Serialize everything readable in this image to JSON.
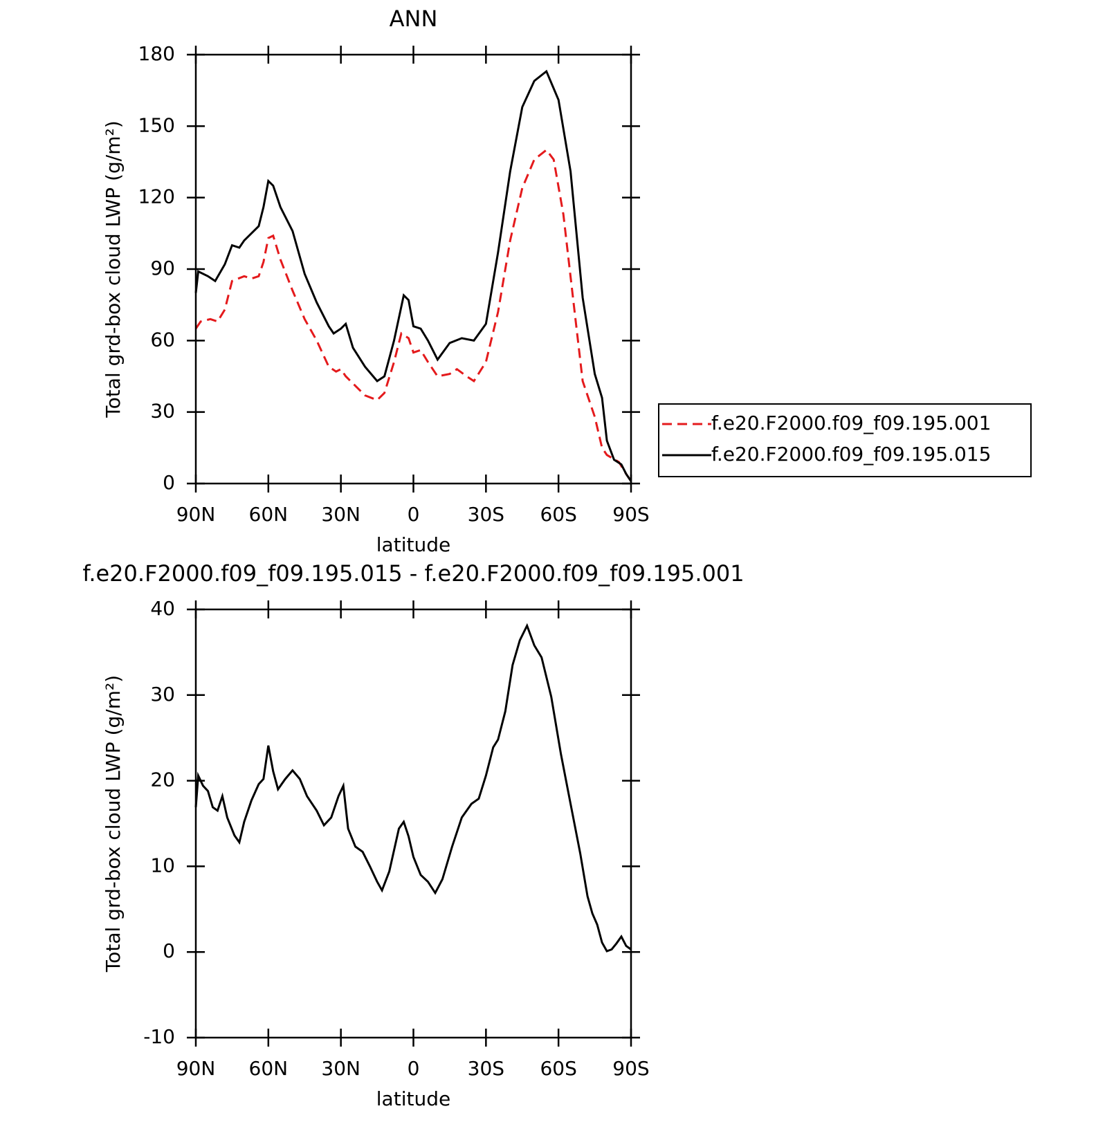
{
  "chart_data": [
    {
      "type": "line",
      "title": "ANN",
      "x_label": "latitude",
      "y_label": "Total grd-box cloud LWP (g/m²)",
      "xlim": [
        90,
        -90
      ],
      "xticks": [
        {
          "value": 90,
          "label": "90N"
        },
        {
          "value": 60,
          "label": "60N"
        },
        {
          "value": 30,
          "label": "30N"
        },
        0,
        {
          "value": -30,
          "label": "30S"
        },
        {
          "value": -60,
          "label": "60S"
        },
        {
          "value": -90,
          "label": "90S"
        }
      ],
      "ylim": [
        0,
        180
      ],
      "yticks": [
        0,
        30,
        60,
        90,
        120,
        150,
        180
      ],
      "legend": "right",
      "series": [
        {
          "name": "f.e20.F2000.f09_f09.195.001",
          "color": "#e41a1c",
          "line_style": "dashed",
          "x": [
            90,
            88,
            84,
            81,
            78,
            75,
            70,
            67,
            64,
            62,
            60,
            58,
            55,
            50,
            45,
            40,
            35,
            32,
            30,
            28,
            25,
            20,
            15,
            12,
            8,
            5,
            2,
            0,
            -3,
            -6,
            -10,
            -15,
            -18,
            -22,
            -25,
            -30,
            -35,
            -40,
            -45,
            -50,
            -55,
            -58,
            -62,
            -66,
            -70,
            -75,
            -78,
            -80,
            -85,
            -88,
            -90
          ],
          "values": [
            65,
            68,
            69,
            68,
            73,
            85,
            87,
            86,
            87,
            93,
            103,
            104,
            94,
            81,
            69,
            60,
            49,
            47,
            48,
            45,
            42,
            37,
            35,
            38,
            51,
            63,
            61,
            55,
            56,
            51,
            45,
            46,
            48,
            45,
            43,
            51,
            72,
            102,
            124,
            136,
            140,
            136,
            113,
            78,
            43,
            28,
            15,
            12,
            9,
            4,
            1
          ]
        },
        {
          "name": "f.e20.F2000.f09_f09.195.015",
          "color": "#000000",
          "line_style": "solid",
          "x": [
            90,
            89,
            85,
            82,
            78,
            75,
            72,
            70,
            67,
            64,
            62,
            60,
            58,
            55,
            50,
            45,
            40,
            35,
            33,
            30,
            28,
            25,
            20,
            15,
            12,
            8,
            4,
            2,
            0,
            -3,
            -6,
            -10,
            -15,
            -20,
            -25,
            -30,
            -35,
            -40,
            -45,
            -50,
            -55,
            -60,
            -65,
            -70,
            -75,
            -78,
            -80,
            -83,
            -86,
            -88,
            -90
          ],
          "values": [
            80,
            89,
            87,
            85,
            92,
            100,
            99,
            102,
            105,
            108,
            116,
            127,
            125,
            116,
            106,
            88,
            76,
            66,
            63,
            65,
            67,
            57,
            49,
            43,
            45,
            60,
            79,
            77,
            66,
            65,
            60,
            52,
            59,
            61,
            60,
            67,
            97,
            131,
            158,
            169,
            173,
            161,
            131,
            78,
            46,
            36,
            18,
            10,
            8,
            4,
            1
          ]
        }
      ]
    },
    {
      "type": "line",
      "title": "f.e20.F2000.f09_f09.195.015 - f.e20.F2000.f09_f09.195.001",
      "x_label": "latitude",
      "y_label": "Total grd-box cloud LWP (g/m²)",
      "xlim": [
        90,
        -90
      ],
      "xticks": [
        {
          "value": 90,
          "label": "90N"
        },
        {
          "value": 60,
          "label": "60N"
        },
        {
          "value": 30,
          "label": "30N"
        },
        0,
        {
          "value": -30,
          "label": "30S"
        },
        {
          "value": -60,
          "label": "60S"
        },
        {
          "value": -90,
          "label": "90S"
        }
      ],
      "ylim": [
        -10,
        40
      ],
      "yticks": [
        -10,
        0,
        10,
        20,
        30,
        40
      ],
      "series": [
        {
          "color": "#000000",
          "line_style": "solid",
          "x": [
            90,
            89,
            87,
            85,
            83,
            81,
            79,
            77,
            74,
            72,
            70,
            67,
            64,
            62,
            60,
            58,
            56,
            53,
            50,
            47,
            44,
            40,
            37,
            34,
            31,
            29,
            27,
            24,
            21,
            18,
            15,
            13,
            10,
            6,
            4,
            2,
            0,
            -3,
            -6,
            -9,
            -12,
            -16,
            -20,
            -24,
            -27,
            -30,
            -33,
            -35,
            -38,
            -41,
            -44,
            -47,
            -50,
            -53,
            -57,
            -61,
            -65,
            -69,
            -72,
            -74,
            -76,
            -78,
            -80,
            -82,
            -84,
            -86,
            -88,
            -90
          ],
          "values": [
            16.9,
            20.6,
            19.4,
            18.8,
            16.9,
            16.5,
            18.2,
            15.7,
            13.6,
            12.8,
            15.2,
            17.7,
            19.6,
            20.2,
            24.1,
            21.1,
            19.0,
            20.2,
            21.2,
            20.2,
            18.2,
            16.5,
            14.8,
            15.7,
            18.2,
            19.4,
            14.4,
            12.3,
            11.7,
            10.0,
            8.2,
            7.2,
            9.4,
            14.4,
            15.2,
            13.5,
            11.1,
            9.0,
            8.2,
            6.9,
            8.5,
            12.3,
            15.7,
            17.3,
            17.9,
            20.6,
            23.9,
            24.8,
            28.1,
            33.5,
            36.4,
            38.1,
            35.8,
            34.4,
            29.8,
            23.1,
            17.3,
            11.5,
            6.5,
            4.5,
            3.2,
            1.1,
            0.1,
            0.3,
            1.0,
            1.8,
            0.7,
            0.3
          ]
        }
      ]
    }
  ]
}
